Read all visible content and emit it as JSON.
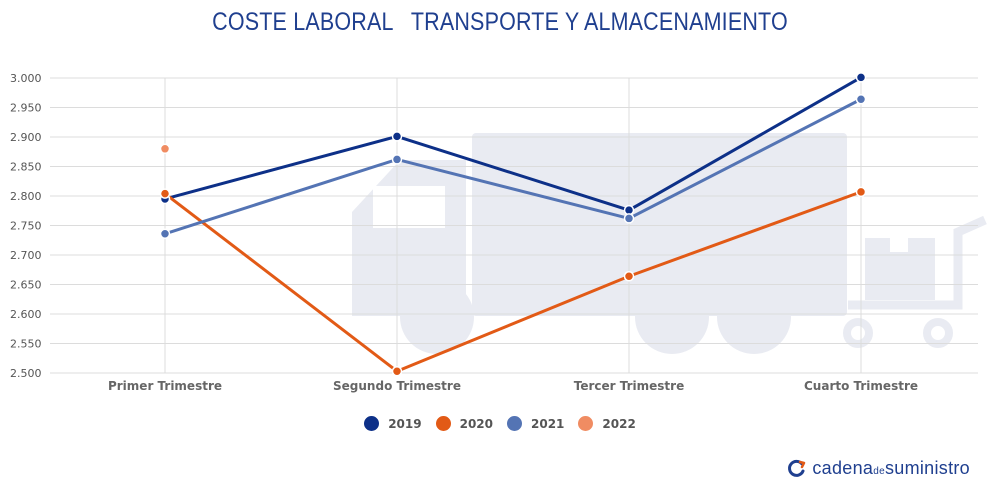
{
  "brand": {
    "name": "cadena de suministro",
    "part1": "cadena",
    "part2": "de",
    "part3": "suministro"
  },
  "chart_data": {
    "type": "line",
    "title": "COSTE LABORAL   TRANSPORTE Y ALMACENAMIENTO",
    "xlabel": "",
    "ylabel": "",
    "categories": [
      "Primer Trimestre",
      "Segundo Trimestre",
      "Tercer Trimestre",
      "Cuarto Trimestre"
    ],
    "ylim": [
      2500,
      3000
    ],
    "yticks": [
      2500,
      2550,
      2600,
      2650,
      2700,
      2750,
      2800,
      2850,
      2900,
      2950,
      3000
    ],
    "ytick_labels": [
      "2.500",
      "2.550",
      "2.600",
      "2.650",
      "2.700",
      "2.750",
      "2.800",
      "2.850",
      "2.900",
      "2.950",
      "3.000"
    ],
    "grid": true,
    "legend_position": "bottom-center",
    "series": [
      {
        "name": "2019",
        "color": "#0d3088",
        "values": [
          2795,
          2901,
          2776,
          3001
        ]
      },
      {
        "name": "2020",
        "color": "#e25a16",
        "values": [
          2804,
          2503,
          2664,
          2807
        ]
      },
      {
        "name": "2021",
        "color": "#5474b4",
        "values": [
          2736,
          2862,
          2762,
          2964
        ]
      },
      {
        "name": "2022",
        "color": "#f08c62",
        "values": [
          2880,
          null,
          null,
          null
        ]
      }
    ]
  }
}
